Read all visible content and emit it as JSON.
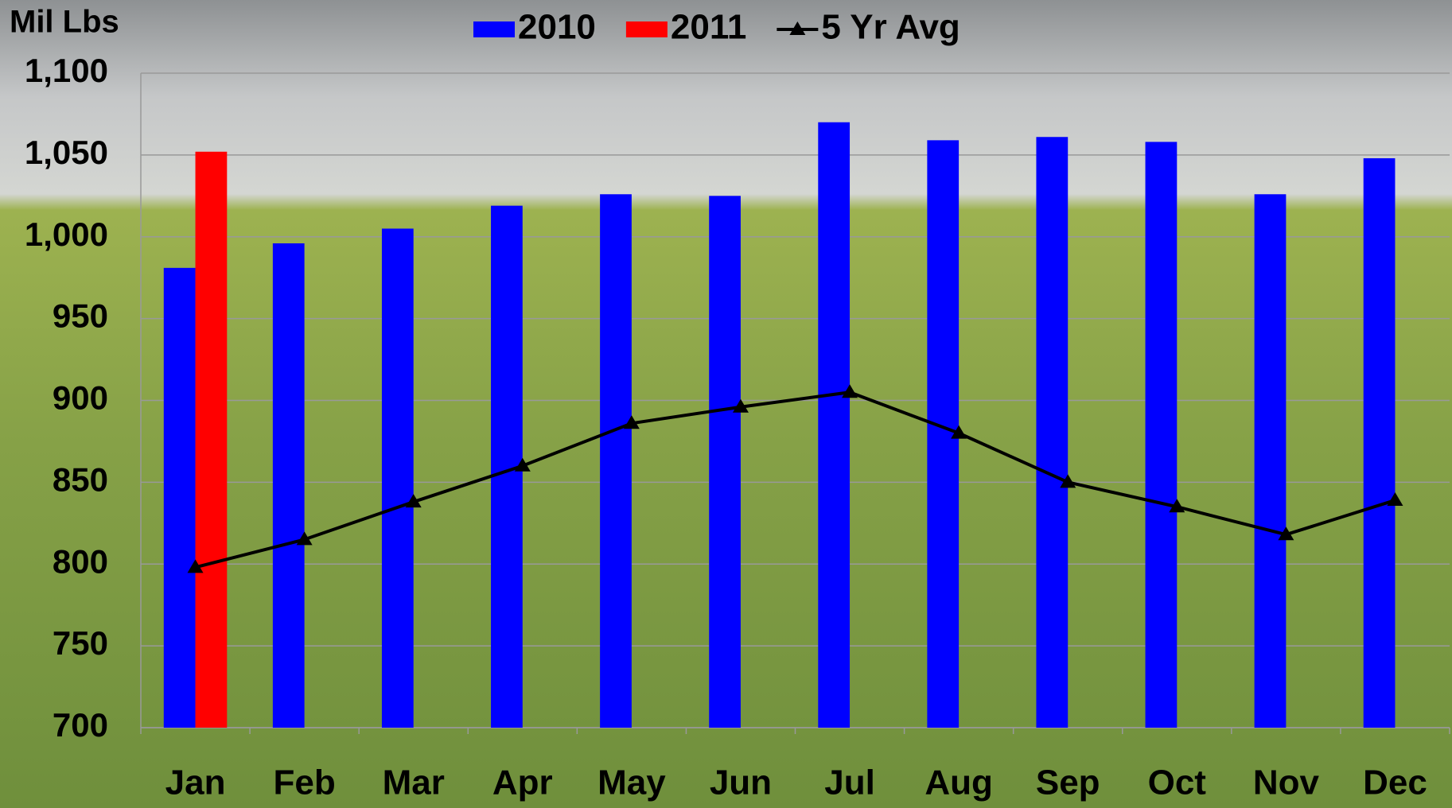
{
  "chart_data": {
    "type": "bar",
    "y_axis_label": "Mil Lbs",
    "categories": [
      "Jan",
      "Feb",
      "Mar",
      "Apr",
      "May",
      "Jun",
      "Jul",
      "Aug",
      "Sep",
      "Oct",
      "Nov",
      "Dec"
    ],
    "series": [
      {
        "name": "2010",
        "type": "bar",
        "color": "#0000ff",
        "values": [
          981,
          996,
          1005,
          1019,
          1026,
          1025,
          1070,
          1059,
          1061,
          1058,
          1026,
          1048
        ]
      },
      {
        "name": "2011",
        "type": "bar",
        "color": "#ff0000",
        "values": [
          1052,
          null,
          null,
          null,
          null,
          null,
          null,
          null,
          null,
          null,
          null,
          null
        ]
      },
      {
        "name": "5 Yr Avg",
        "type": "line",
        "color": "#000000",
        "marker": "triangle",
        "values": [
          798,
          815,
          838,
          860,
          886,
          896,
          905,
          880,
          850,
          835,
          818,
          839
        ]
      }
    ],
    "ylim": [
      700,
      1100
    ],
    "yticks": [
      700,
      750,
      800,
      850,
      900,
      950,
      {
        "value": 1000,
        "label": "1,000"
      },
      {
        "value": 1050,
        "label": "1,050"
      },
      {
        "value": 1100,
        "label": "1,100"
      }
    ],
    "grid": true,
    "legend": "top"
  }
}
